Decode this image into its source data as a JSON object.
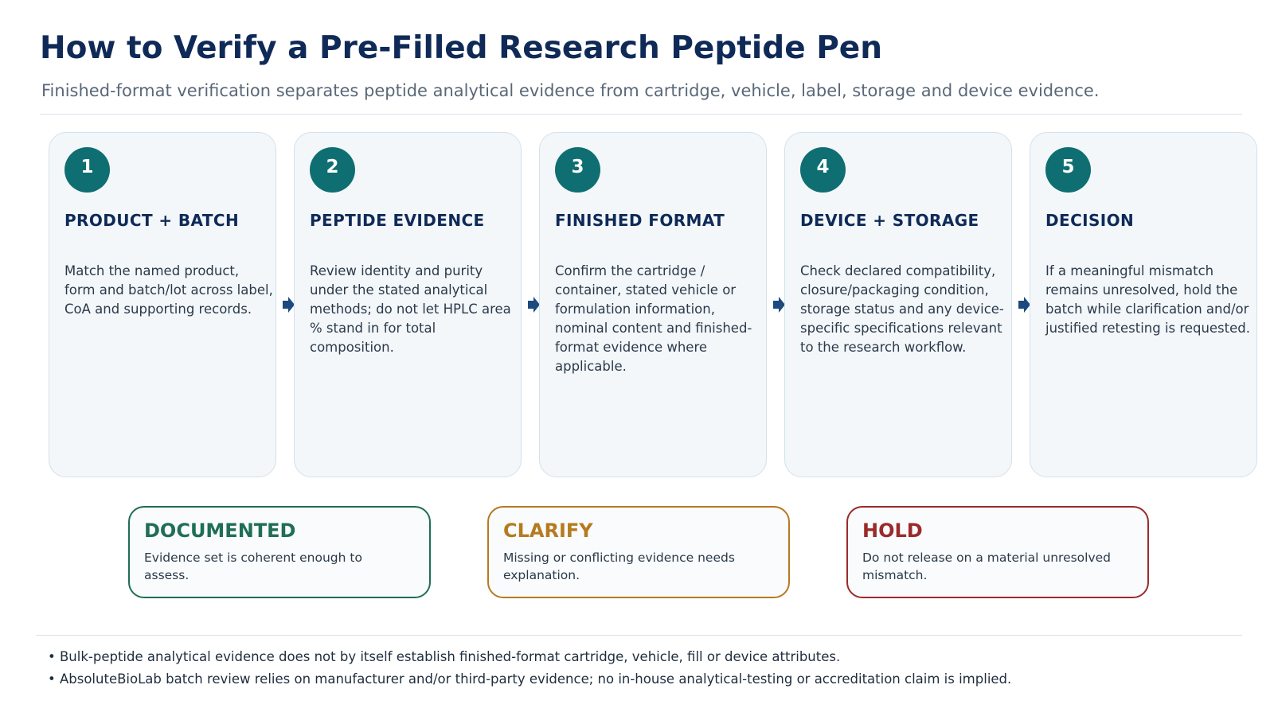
{
  "header": {
    "title": "How to Verify a Pre-Filled Research Peptide Pen",
    "subtitle": "Finished-format verification separates peptide analytical evidence from cartridge, vehicle, label, storage and device evidence."
  },
  "steps": [
    {
      "number": "1",
      "title": "PRODUCT + BATCH",
      "body": "Match the named product, form and batch/lot across label, CoA and supporting records."
    },
    {
      "number": "2",
      "title": "PEPTIDE EVIDENCE",
      "body": "Review identity and purity under the stated analytical methods; do not let HPLC area % stand in for total composition."
    },
    {
      "number": "3",
      "title": "FINISHED FORMAT",
      "body": "Confirm the cartridge / container, stated vehicle or formulation information, nominal content and finished-format evidence where applicable."
    },
    {
      "number": "4",
      "title": "DEVICE + STORAGE",
      "body": "Check declared compatibility, closure/packaging condition, storage status and any device-specific specifications relevant to the research workflow."
    },
    {
      "number": "5",
      "title": "DECISION",
      "body": "If a meaningful mismatch remains unresolved, hold the batch while clarification and/or justified retesting is requested."
    }
  ],
  "outcomes": [
    {
      "title": "DOCUMENTED",
      "body": "Evidence set is coherent enough to assess.",
      "color": "#1f6e55"
    },
    {
      "title": "CLARIFY",
      "body": "Missing or conflicting evidence needs explanation.",
      "color": "#b67a1f"
    },
    {
      "title": "HOLD",
      "body": "Do not release on a material unresolved mismatch.",
      "color": "#9b2a2a"
    }
  ],
  "notes": [
    "• Bulk-peptide analytical evidence does not by itself establish finished-format cartridge, vehicle, fill or device attributes.",
    "• AbsoluteBioLab batch review relies on manufacturer and/or third-party evidence; no in-house analytical-testing or accreditation claim is implied."
  ],
  "colors": {
    "navy": "#0f2a57",
    "teal": "#0f6e71",
    "arrow": "#1d4a7e"
  }
}
